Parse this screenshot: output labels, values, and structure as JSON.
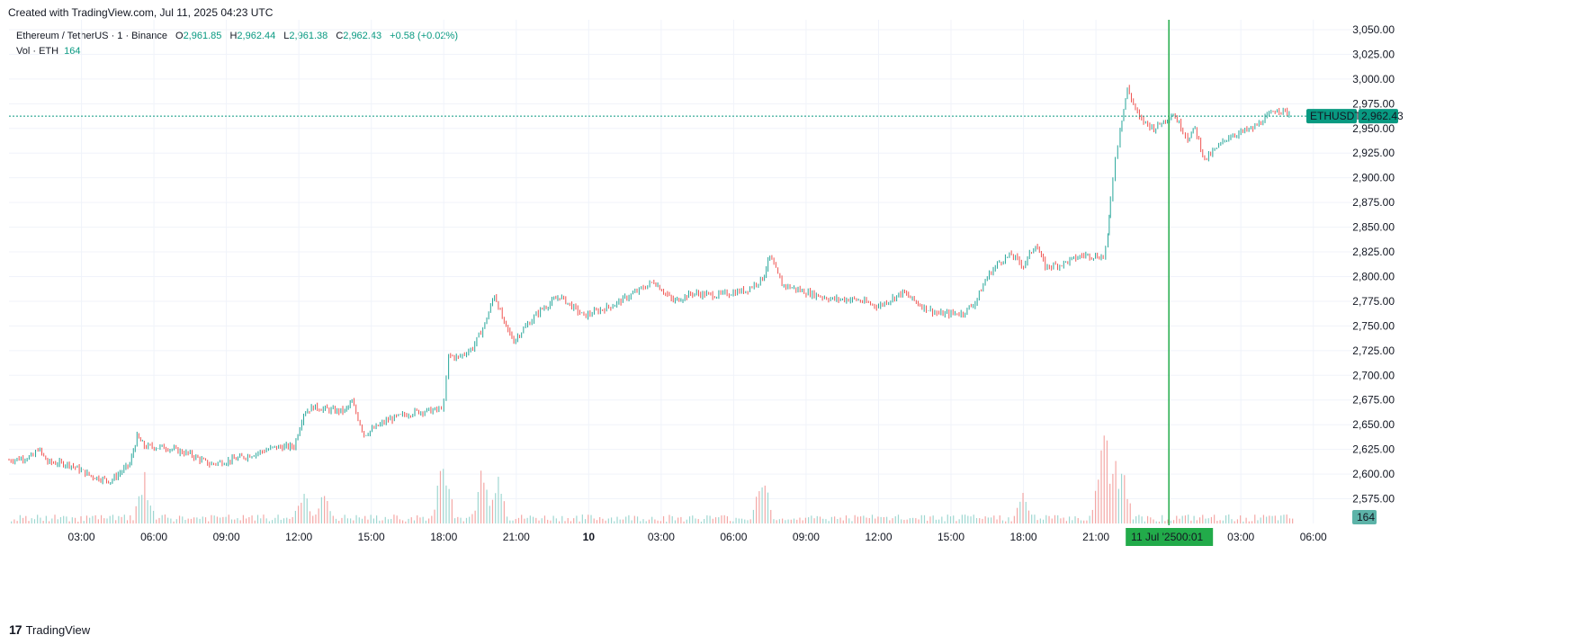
{
  "header": {
    "created_text": "Created with TradingView.com, Jul 11, 2025 04:23 UTC"
  },
  "legend": {
    "symbol": "Ethereum / TetherUS · 1 · Binance",
    "open_label": "O",
    "open": "2,961.85",
    "high_label": "H",
    "high": "2,962.44",
    "low_label": "L",
    "low": "2,961.38",
    "close_label": "C",
    "close": "2,962.43",
    "change": "+0.58 (+0.02%)",
    "vol_label": "Vol · ETH",
    "vol_value": "164"
  },
  "price_tag": {
    "symbol": "ETHUSDT",
    "price": "2,962.43"
  },
  "volume_tag": "164",
  "crosshair_label": {
    "date": "11 Jul '25",
    "time": "00:01"
  },
  "footer": {
    "brand": "TradingView",
    "icon": "tradingview-logo-icon"
  },
  "colors": {
    "up": "#26a69a",
    "down": "#ef5350",
    "crosshair": "#22ab4a",
    "price_line": "#089981"
  },
  "chart_data": {
    "type": "line",
    "title": "Ethereum / TetherUS · 1 · Binance",
    "xlabel": "",
    "ylabel": "",
    "ylim": [
      2550,
      3060
    ],
    "y_ticks": [
      "2,575.00",
      "2,600.00",
      "2,625.00",
      "2,650.00",
      "2,675.00",
      "2,700.00",
      "2,725.00",
      "2,750.00",
      "2,775.00",
      "2,800.00",
      "2,825.00",
      "2,850.00",
      "2,875.00",
      "2,900.00",
      "2,925.00",
      "2,950.00",
      "2,975.00",
      "3,000.00",
      "3,025.00",
      "3,050.00"
    ],
    "x_ticks": [
      "03:00",
      "06:00",
      "09:00",
      "12:00",
      "15:00",
      "18:00",
      "21:00",
      "10",
      "03:00",
      "06:00",
      "09:00",
      "12:00",
      "15:00",
      "18:00",
      "21:00",
      "03:00",
      "06:00"
    ],
    "x_tick_hours": [
      3,
      6,
      9,
      12,
      15,
      18,
      21,
      24,
      27,
      30,
      33,
      36,
      39,
      42,
      45,
      51,
      54
    ],
    "x_range_hours": [
      0.0,
      55.5
    ],
    "grid": true,
    "series": [
      {
        "values_hours": [
          0.0,
          1.0,
          1.2,
          1.6,
          2.5,
          3.4,
          4.2,
          5.0,
          5.3,
          5.6,
          6.5,
          7.5,
          8.3,
          9.0,
          9.8,
          11.0,
          11.8,
          12.2,
          12.6,
          13.5,
          13.9,
          14.2,
          14.7,
          15.7,
          16.8,
          17.8,
          18.0,
          18.2,
          18.6,
          19.2,
          19.7,
          20.1,
          20.5,
          20.9,
          21.3,
          22.0,
          22.8,
          23.8,
          25.0,
          26.0,
          26.7,
          27.5,
          28.3,
          29.3,
          30.5,
          31.2,
          31.5,
          32.0,
          33.0,
          34.1,
          35.0,
          36.0,
          37.0,
          37.8,
          38.5,
          39.5,
          40.0,
          40.5,
          41.0,
          41.5,
          42.0,
          42.5,
          42.9,
          43.5,
          44.5,
          45.3,
          45.5,
          45.6,
          45.8,
          46.0,
          46.3,
          46.8,
          47.4,
          48.2,
          48.6,
          48.8,
          49.1,
          49.5,
          50.0,
          50.5,
          51.5,
          52.0,
          52.5,
          53.0
        ],
        "values_close": [
          2614,
          2618,
          2626,
          2612,
          2610,
          2598,
          2593,
          2610,
          2638,
          2628,
          2627,
          2620,
          2610,
          2613,
          2618,
          2627,
          2628,
          2662,
          2668,
          2664,
          2664,
          2673,
          2640,
          2655,
          2663,
          2665,
          2672,
          2720,
          2718,
          2728,
          2752,
          2782,
          2752,
          2735,
          2747,
          2766,
          2780,
          2760,
          2771,
          2785,
          2795,
          2775,
          2783,
          2781,
          2786,
          2798,
          2820,
          2792,
          2784,
          2777,
          2777,
          2770,
          2784,
          2770,
          2762,
          2763,
          2774,
          2800,
          2815,
          2822,
          2811,
          2833,
          2810,
          2812,
          2822,
          2820,
          2840,
          2880,
          2920,
          2950,
          2990,
          2960,
          2950,
          2965,
          2948,
          2940,
          2950,
          2918,
          2930,
          2942,
          2950,
          2960,
          2970,
          2965
        ]
      }
    ],
    "current_price": 2962.43,
    "volume_tag_value": 164
  }
}
